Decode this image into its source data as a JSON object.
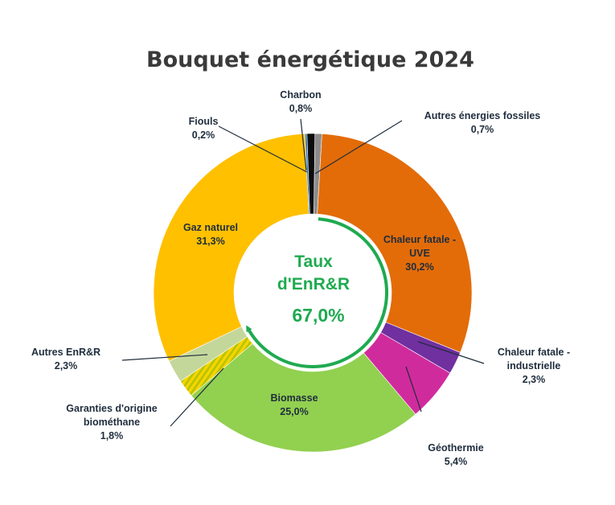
{
  "chart_data": {
    "type": "pie",
    "variant": "donut",
    "title": "Bouquet énergétique 2024",
    "center": {
      "line1": "Taux",
      "line2": "d'EnR&R",
      "value": "67,0%"
    },
    "slices": [
      {
        "name": "Autres énergies fossiles",
        "value": 0.7,
        "label": "0,7%",
        "color": "#8c8c8c"
      },
      {
        "name": "Chaleur fatale - UVE",
        "value": 30.2,
        "label": "30,2%",
        "color": "#e36c09"
      },
      {
        "name": "Chaleur fatale - industrielle",
        "value": 2.3,
        "label": "2,3%",
        "color": "#7030a0"
      },
      {
        "name": "Géothermie",
        "value": 5.4,
        "label": "5,4%",
        "color": "#d02b9d"
      },
      {
        "name": "Biomasse",
        "value": 25.0,
        "label": "25,0%",
        "color": "#92d050"
      },
      {
        "name": "Garanties d'origine biométhane",
        "value": 1.8,
        "label": "1,8%",
        "color": "#c9c900",
        "pattern": "striped"
      },
      {
        "name": "Autres EnR&R",
        "value": 2.3,
        "label": "2,3%",
        "color": "#c4d79b"
      },
      {
        "name": "Gaz naturel",
        "value": 31.3,
        "label": "31,3%",
        "color": "#ffc000"
      },
      {
        "name": "Fiouls",
        "value": 0.2,
        "label": "0,2%",
        "color": "#1f6fbf"
      },
      {
        "name": "Charbon",
        "value": 0.8,
        "label": "0,8%",
        "color": "#0d0d0d"
      }
    ],
    "renewable_share": 67.0,
    "renewable_arc_color": "#1faa50"
  }
}
